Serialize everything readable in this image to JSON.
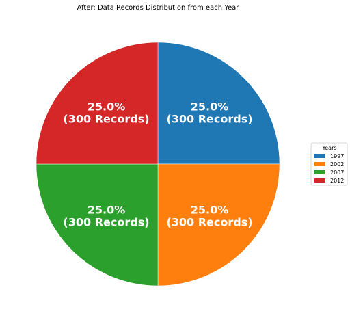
{
  "chart_data": {
    "type": "pie",
    "title": "After: Data Records Distribution from each Year",
    "legend_title": "Years",
    "legend_placement": "right",
    "slices": [
      {
        "label": "1997",
        "value": 300,
        "percent": "25.0%",
        "records_text": "(300 Records)",
        "color": "#1f77b4"
      },
      {
        "label": "2002",
        "value": 300,
        "percent": "25.0%",
        "records_text": "(300 Records)",
        "color": "#ff7f0e"
      },
      {
        "label": "2007",
        "value": 300,
        "percent": "25.0%",
        "records_text": "(300 Records)",
        "color": "#2ca02c"
      },
      {
        "label": "2012",
        "value": 300,
        "percent": "25.0%",
        "records_text": "(300 Records)",
        "color": "#d62728"
      }
    ]
  }
}
